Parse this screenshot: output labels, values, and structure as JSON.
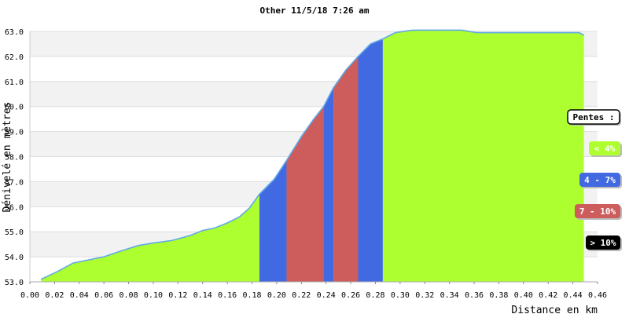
{
  "chart_data": {
    "type": "area",
    "title": "Other 11/5/18 7:26 am",
    "xlabel": "Distance en km",
    "ylabel": "Dénivelé en mètres",
    "xlim": [
      0.0,
      0.46
    ],
    "ylim": [
      53.0,
      63.0
    ],
    "x_ticks": [
      "0.00",
      "0.02",
      "0.04",
      "0.06",
      "0.08",
      "0.10",
      "0.12",
      "0.14",
      "0.16",
      "0.18",
      "0.20",
      "0.22",
      "0.24",
      "0.26",
      "0.28",
      "0.30",
      "0.32",
      "0.34",
      "0.36",
      "0.38",
      "0.40",
      "0.42",
      "0.44",
      "0.46"
    ],
    "y_ticks": [
      "53.0",
      "54.0",
      "55.0",
      "56.0",
      "57.0",
      "58.0",
      "59.0",
      "60.0",
      "61.0",
      "62.0",
      "63.0"
    ],
    "profile": {
      "x": [
        0.009,
        0.022,
        0.035,
        0.045,
        0.06,
        0.075,
        0.088,
        0.1,
        0.115,
        0.13,
        0.14,
        0.15,
        0.16,
        0.17,
        0.178,
        0.186,
        0.198,
        0.208,
        0.22,
        0.23,
        0.238,
        0.246,
        0.256,
        0.266,
        0.276,
        0.286,
        0.296,
        0.31,
        0.33,
        0.35,
        0.362,
        0.38,
        0.42,
        0.445,
        0.449
      ],
      "y": [
        53.1,
        53.4,
        53.75,
        53.85,
        54.0,
        54.25,
        54.45,
        54.55,
        54.65,
        54.85,
        55.05,
        55.15,
        55.35,
        55.6,
        55.95,
        56.5,
        57.1,
        57.85,
        58.8,
        59.5,
        60.0,
        60.75,
        61.45,
        62.0,
        62.5,
        62.7,
        62.95,
        63.05,
        63.05,
        63.05,
        62.95,
        62.95,
        62.95,
        62.95,
        62.85
      ]
    },
    "segments": [
      {
        "from": 0.009,
        "to": 0.186,
        "class": "< 4%"
      },
      {
        "from": 0.186,
        "to": 0.208,
        "class": "4 - 7%"
      },
      {
        "from": 0.208,
        "to": 0.238,
        "class": "7 - 10%"
      },
      {
        "from": 0.238,
        "to": 0.246,
        "class": "4 - 7%"
      },
      {
        "from": 0.246,
        "to": 0.266,
        "class": "7 - 10%"
      },
      {
        "from": 0.266,
        "to": 0.286,
        "class": "4 - 7%"
      },
      {
        "from": 0.286,
        "to": 0.449,
        "class": "< 4%"
      }
    ],
    "legend": {
      "title": "Pentes :",
      "placement": "right",
      "items": [
        {
          "label": "< 4%",
          "color": "#adff2f",
          "text_color": "#ffffff"
        },
        {
          "label": "4 - 7%",
          "color": "#4169e1",
          "text_color": "#ffffff"
        },
        {
          "label": "7 - 10%",
          "color": "#cd5c5c",
          "text_color": "#ffffff"
        },
        {
          "label": "> 10%",
          "color": "#000000",
          "text_color": "#ffffff"
        }
      ]
    },
    "line_color": "#5fa8e8",
    "band_colors": [
      "#f2f2f2",
      "#ffffff"
    ],
    "grid": true
  }
}
